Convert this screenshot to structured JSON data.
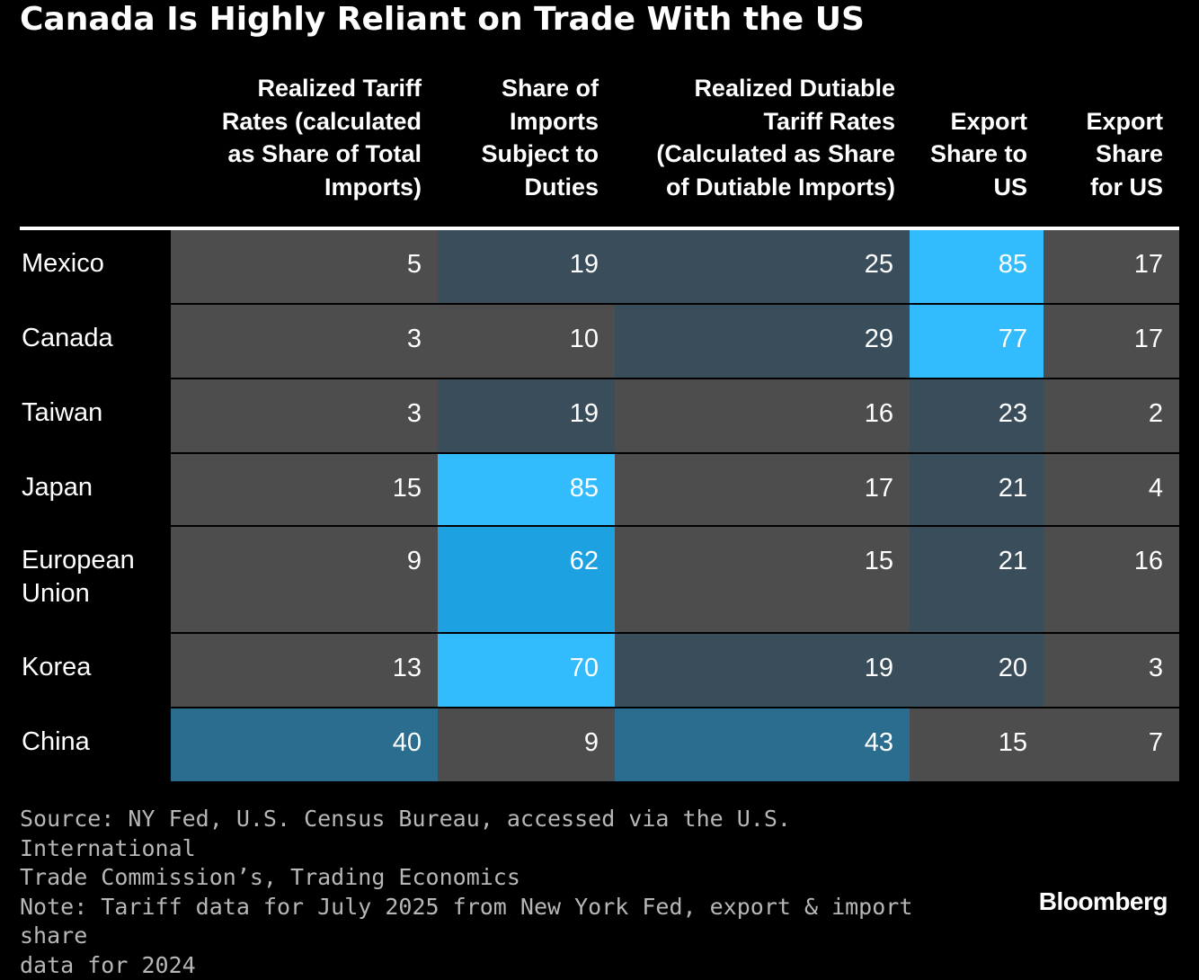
{
  "title": "Canada Is Highly Reliant on Trade With the US",
  "chart_data": {
    "type": "table",
    "title": "Canada Is Highly Reliant on Trade With the US",
    "columns": [
      "Realized Tariff Rates (calculated as Share of Total Imports)",
      "Share of Imports Subject to Duties",
      "Realized Dutiable Tariff Rates (Calculated as Share of Dutiable Imports)",
      "Export Share to US",
      "Export Share for US"
    ],
    "column_header_lines": [
      [
        "Realized Tariff",
        "Rates (calculated",
        "as Share of Total",
        "Imports)"
      ],
      [
        "Share of",
        "Imports",
        "Subject to",
        "Duties"
      ],
      [
        "Realized Dutiable",
        "Tariff Rates",
        "(Calculated as Share",
        "of Dutiable Imports)"
      ],
      [
        "Export",
        "Share to",
        "US"
      ],
      [
        "Export",
        "Share",
        "for US"
      ]
    ],
    "rows": [
      {
        "label": "Mexico",
        "label_lines": [
          "Mexico"
        ],
        "values": [
          5,
          19,
          25,
          85,
          17
        ]
      },
      {
        "label": "Canada",
        "label_lines": [
          "Canada"
        ],
        "values": [
          3,
          10,
          29,
          77,
          17
        ]
      },
      {
        "label": "Taiwan",
        "label_lines": [
          "Taiwan"
        ],
        "values": [
          3,
          19,
          16,
          23,
          2
        ]
      },
      {
        "label": "Japan",
        "label_lines": [
          "Japan"
        ],
        "values": [
          15,
          85,
          17,
          21,
          4
        ]
      },
      {
        "label": "European Union",
        "label_lines": [
          "European",
          "Union"
        ],
        "values": [
          9,
          62,
          15,
          21,
          16
        ]
      },
      {
        "label": "Korea",
        "label_lines": [
          "Korea"
        ],
        "values": [
          13,
          70,
          19,
          20,
          3
        ]
      },
      {
        "label": "China",
        "label_lines": [
          "China"
        ],
        "values": [
          40,
          9,
          43,
          15,
          7
        ]
      }
    ],
    "cell_shades": [
      [
        "gray",
        "slate",
        "slate",
        "bright",
        "gray"
      ],
      [
        "gray",
        "gray",
        "slate",
        "bright",
        "gray"
      ],
      [
        "gray",
        "slate",
        "gray",
        "slate",
        "gray"
      ],
      [
        "gray",
        "bright",
        "gray",
        "slate",
        "gray"
      ],
      [
        "gray",
        "mid",
        "gray",
        "slate",
        "gray"
      ],
      [
        "gray",
        "bright",
        "slate",
        "slate",
        "gray"
      ],
      [
        "teal",
        "gray",
        "teal",
        "gray",
        "gray"
      ]
    ]
  },
  "colors": {
    "background": "#000000",
    "gray": "#4d4d4d",
    "slate": "#3a4d5a",
    "teal": "#2a6d8f",
    "mid": "#1ea1e0",
    "bright": "#33bcfd",
    "text": "#ffffff",
    "source_text": "#b7b7b7"
  },
  "footer": {
    "source_lines": [
      "Source: NY Fed, U.S. Census Bureau, accessed via the U.S. International",
      "Trade Commission’s, Trading Economics",
      "Note: Tariff data for July 2025 from New York Fed, export & import share",
      "data for 2024"
    ],
    "brand": "Bloomberg"
  }
}
